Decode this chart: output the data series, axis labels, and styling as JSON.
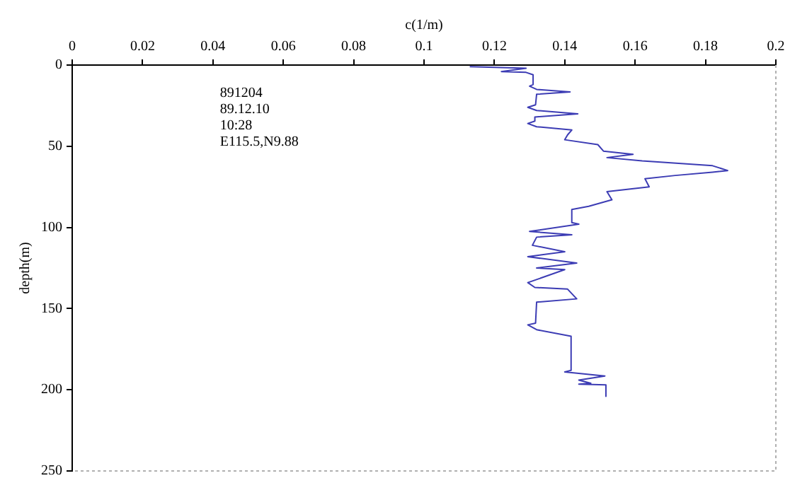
{
  "chart_data": {
    "type": "line",
    "xlabel": "c(1/m)",
    "ylabel": "depth(m)",
    "annotations": [
      "891204",
      "89.12.10",
      "10:28",
      "E115.5,N9.88"
    ],
    "xlim": [
      0,
      0.2
    ],
    "xticks": [
      0,
      0.02,
      0.04,
      0.06,
      0.08,
      0.1,
      0.12,
      0.14,
      0.16,
      0.18,
      0.2
    ],
    "ylim": [
      250,
      0
    ],
    "yticks": [
      0,
      50,
      100,
      150,
      200,
      250
    ],
    "grid": false,
    "legend": false,
    "marker": "none",
    "line_style": "solid",
    "series": [
      {
        "color": "#3c3cb4",
        "x": [
          0.113,
          0.129,
          0.122,
          0.129,
          0.131,
          0.131,
          0.13,
          0.132,
          0.1415,
          0.132,
          0.1317,
          0.1295,
          0.132,
          0.1437,
          0.1315,
          0.1315,
          0.1295,
          0.132,
          0.142,
          0.1408,
          0.14,
          0.1494,
          0.151,
          0.1594,
          0.152,
          0.162,
          0.182,
          0.1863,
          0.182,
          0.1714,
          0.1628,
          0.164,
          0.152,
          0.1534,
          0.1468,
          0.142,
          0.142,
          0.144,
          0.13,
          0.142,
          0.132,
          0.1308,
          0.14,
          0.1295,
          0.1434,
          0.132,
          0.14,
          0.1295,
          0.1315,
          0.1408,
          0.1434,
          0.132,
          0.1317,
          0.1295,
          0.132,
          0.1418,
          0.1418,
          0.14,
          0.1514,
          0.144,
          0.1474,
          0.144,
          0.1517,
          0.1517
        ],
        "values": [
          1,
          2,
          4,
          4.5,
          6,
          12,
          13,
          15,
          16.5,
          18,
          24.5,
          26,
          28,
          30,
          32,
          34.5,
          36,
          38,
          40,
          43,
          46,
          49,
          53,
          55,
          57,
          59,
          62,
          65,
          66,
          68,
          70,
          75,
          78,
          83,
          87,
          89,
          97,
          98,
          102.5,
          104.5,
          106,
          111,
          115,
          118,
          122,
          125,
          126,
          134,
          137,
          138,
          144,
          146,
          159,
          160,
          163,
          167,
          188,
          189,
          191.5,
          194,
          196,
          196.5,
          197,
          204
        ]
      }
    ]
  }
}
